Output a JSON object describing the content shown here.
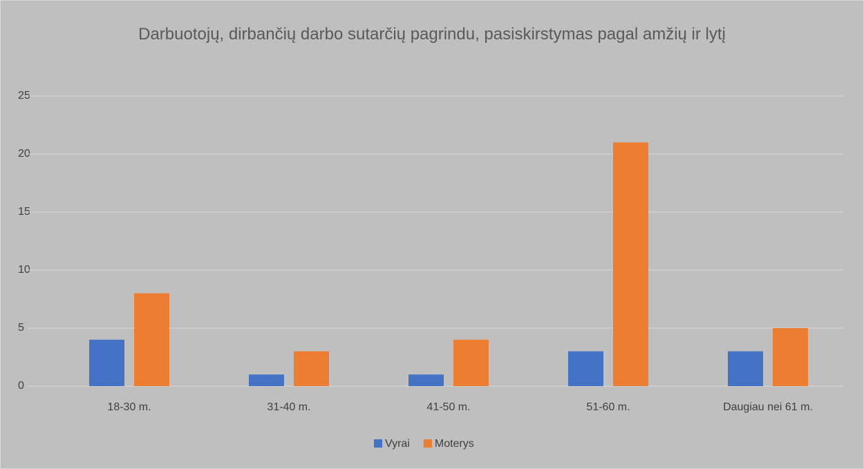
{
  "chart_data": {
    "type": "bar",
    "title": "Darbuotojų, dirbančių darbo sutarčių pagrindu, pasiskirstymas pagal amžių ir lytį",
    "categories": [
      "18-30 m.",
      "31-40 m.",
      "41-50 m.",
      "51-60 m.",
      "Daugiau nei 61 m."
    ],
    "series": [
      {
        "name": "Vyrai",
        "color": "#4472c4",
        "values": [
          4,
          1,
          1,
          3,
          3
        ]
      },
      {
        "name": "Moterys",
        "color": "#ed7d31",
        "values": [
          8,
          3,
          4,
          21,
          5
        ]
      }
    ],
    "ylim": [
      0,
      25
    ],
    "yticks": [
      0,
      5,
      10,
      15,
      20,
      25
    ],
    "grid": true,
    "legend": "bottom"
  }
}
